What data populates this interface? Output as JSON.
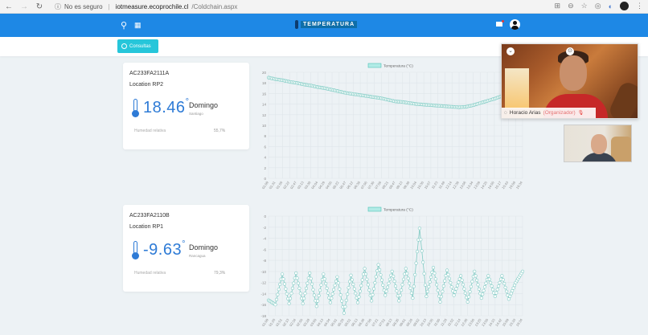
{
  "browser": {
    "security_label": "No es seguro",
    "url_host": "iotmeasure.ecoprochile.cl",
    "url_path": "/Coldchain.aspx"
  },
  "header": {
    "logo_text": "TEMPERATURA",
    "icons": [
      "search-icon",
      "grid-icon",
      "flag-icon",
      "user-avatar-icon"
    ],
    "accent_color": "#1e88e5"
  },
  "toolbar": {
    "consultas_label": "Consultas",
    "button_color": "#26c6da"
  },
  "sensors": [
    {
      "id": "AC233FA2111A",
      "location": "Location RP2",
      "temperature": "18.46",
      "degree": "°",
      "day": "Domingo",
      "city": "Santiago",
      "humidity_label": "Humedad relativa",
      "humidity_value": "55,7%"
    },
    {
      "id": "AC233FA2110B",
      "location": "Location RP1",
      "temperature": "-9.63",
      "degree": "°",
      "day": "Domingo",
      "city": "Rancagua",
      "humidity_label": "Humedad relativa",
      "humidity_value": "79,3%"
    }
  ],
  "video_call": {
    "main_participant": "Horacio Arias",
    "main_role": "(Organizador)"
  },
  "chart_data": [
    {
      "type": "line",
      "title": "",
      "legend": [
        "Temperatura (°C)"
      ],
      "legend_position": "top",
      "xlabel": "",
      "ylabel": "",
      "ylim": [
        0,
        20
      ],
      "yticks": [
        0,
        2,
        4,
        6,
        8,
        10,
        12,
        14,
        16,
        18,
        20
      ],
      "grid": true,
      "x": [
        "01:09",
        "01:31",
        "01:56",
        "02:22",
        "02:47",
        "03:13",
        "03:38",
        "04:04",
        "04:29",
        "04:55",
        "05:22",
        "05:47",
        "06:12",
        "06:38",
        "07:05",
        "07:30",
        "07:56",
        "08:21",
        "08:47",
        "09:13",
        "09:38",
        "10:04",
        "10:30",
        "10:57",
        "11:23",
        "11:48",
        "12:14",
        "12:39",
        "13:06",
        "13:34",
        "13:59",
        "14:25",
        "14:50",
        "15:17",
        "15:43",
        "16:08",
        "16:34"
      ],
      "series": [
        {
          "name": "Temperatura (°C)",
          "color": "#80cbc4",
          "values": [
            19.0,
            18.7,
            18.5,
            18.2,
            18.0,
            17.7,
            17.5,
            17.2,
            17.0,
            16.7,
            16.4,
            16.1,
            15.9,
            15.7,
            15.5,
            15.3,
            15.1,
            14.8,
            14.5,
            14.4,
            14.2,
            14.0,
            13.9,
            13.8,
            13.7,
            13.6,
            13.5,
            13.4,
            13.5,
            13.8,
            14.2,
            14.6,
            15.0,
            15.5,
            16.0,
            16.6,
            17.2
          ]
        }
      ]
    },
    {
      "type": "line",
      "title": "",
      "legend": [
        "Temperatura (°C)"
      ],
      "legend_position": "top",
      "xlabel": "",
      "ylabel": "",
      "ylim": [
        -18,
        0
      ],
      "yticks": [
        0,
        -2,
        -4,
        -6,
        -8,
        -10,
        -12,
        -14,
        -16,
        -18
      ],
      "grid": true,
      "x": [
        "01:09",
        "01:26",
        "01:51",
        "02:13",
        "02:34",
        "02:50",
        "03:28",
        "03:50",
        "04:13",
        "04:34",
        "05:01",
        "05:26",
        "05:51",
        "06:13",
        "06:36",
        "07:00",
        "07:21",
        "07:51",
        "08:13",
        "08:35",
        "09:01",
        "09:26",
        "09:52",
        "10:13",
        "10:35",
        "11:00",
        "11:26",
        "11:52",
        "12:14",
        "12:36",
        "13:00",
        "13:25",
        "13:50",
        "14:15",
        "14:42",
        "15:09",
        "15:33",
        "16:34"
      ],
      "series": [
        {
          "name": "Temperatura (°C)",
          "color": "#80cbc4",
          "values": [
            -15.2,
            -16.0,
            -10.5,
            -15.8,
            -10.3,
            -15.8,
            -10.3,
            -16.3,
            -10.5,
            -15.6,
            -11.0,
            -17.5,
            -10.7,
            -15.6,
            -9.5,
            -15.3,
            -8.8,
            -14.3,
            -10.0,
            -15.3,
            -9.5,
            -14.8,
            -2.2,
            -14.5,
            -9.3,
            -15.5,
            -9.8,
            -14.3,
            -10.8,
            -15.5,
            -10.0,
            -14.8,
            -10.8,
            -14.5,
            -10.8,
            -15.0,
            -12.0,
            -10.0
          ]
        }
      ]
    }
  ]
}
